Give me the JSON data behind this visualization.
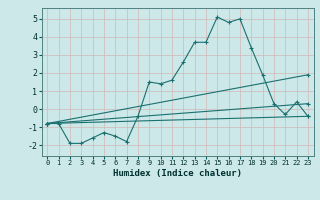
{
  "xlabel": "Humidex (Indice chaleur)",
  "bg_color": "#cde8e8",
  "grid_color": "#b8d4d4",
  "line_color": "#1a7070",
  "xlim": [
    -0.5,
    23.5
  ],
  "ylim": [
    -2.6,
    5.6
  ],
  "yticks": [
    -2,
    -1,
    0,
    1,
    2,
    3,
    4,
    5
  ],
  "xticks": [
    0,
    1,
    2,
    3,
    4,
    5,
    6,
    7,
    8,
    9,
    10,
    11,
    12,
    13,
    14,
    15,
    16,
    17,
    18,
    19,
    20,
    21,
    22,
    23
  ],
  "series": [
    {
      "x": [
        0,
        1,
        2,
        3,
        4,
        5,
        6,
        7,
        8,
        9,
        10,
        11,
        12,
        13,
        14,
        15,
        16,
        17,
        18,
        19,
        20,
        21,
        22,
        23
      ],
      "y": [
        -0.8,
        -0.8,
        -1.9,
        -1.9,
        -1.6,
        -1.3,
        -1.5,
        -1.8,
        -0.4,
        1.5,
        1.4,
        1.6,
        2.6,
        3.7,
        3.7,
        5.1,
        4.8,
        5.0,
        3.4,
        1.9,
        0.3,
        -0.3,
        0.4,
        -0.4
      ]
    },
    {
      "x": [
        0,
        23
      ],
      "y": [
        -0.8,
        1.9
      ]
    },
    {
      "x": [
        0,
        23
      ],
      "y": [
        -0.8,
        0.3
      ]
    },
    {
      "x": [
        0,
        23
      ],
      "y": [
        -0.8,
        -0.4
      ]
    }
  ]
}
